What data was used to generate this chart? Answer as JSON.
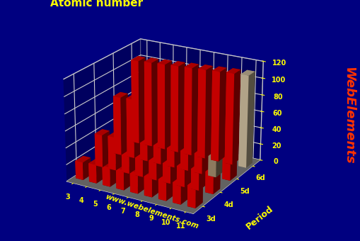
{
  "title": "Atomic number",
  "ylabel": "Period",
  "background_color": "#000080",
  "title_color": "#ffff00",
  "label_color": "#ffff00",
  "tick_color": "#ffff00",
  "watermark": "www.webelements.com",
  "watermark_color": "#ffff00",
  "webelements_text": "WebElements",
  "webelements_color": "#ff3300",
  "groups": [
    3,
    4,
    5,
    6,
    7,
    8,
    9,
    10,
    11
  ],
  "periods": [
    "3d",
    "4d",
    "5d",
    "6d"
  ],
  "atomic_numbers": [
    [
      21,
      22,
      23,
      24,
      25,
      26,
      27,
      28,
      29
    ],
    [
      39,
      40,
      41,
      42,
      43,
      44,
      45,
      46,
      47
    ],
    [
      71,
      72,
      73,
      74,
      75,
      76,
      77,
      78,
      79
    ],
    [
      103,
      104,
      105,
      106,
      107,
      108,
      109,
      110,
      111
    ]
  ],
  "bar_colors": [
    [
      "#dd0000",
      "#dd0000",
      "#dd0000",
      "#dd0000",
      "#dd0000",
      "#dd0000",
      "#dd0000",
      "#dd0000",
      "#dd0000"
    ],
    [
      "#dd0000",
      "#dd0000",
      "#dd0000",
      "#dd0000",
      "#dd0000",
      "#dd0000",
      "#dd0000",
      "#dd0000",
      "#dd0000"
    ],
    [
      "#dd0000",
      "#dd0000",
      "#dd0000",
      "#dd0000",
      "#dd0000",
      "#dd0000",
      "#dd0000",
      "#A0896A",
      "#dd0000"
    ],
    [
      "#dd0000",
      "#dd0000",
      "#dd0000",
      "#dd0000",
      "#dd0000",
      "#dd0000",
      "#dd0000",
      "#dd0000",
      "#C8B89A"
    ]
  ],
  "yticks": [
    0,
    20,
    40,
    60,
    80,
    100,
    120
  ],
  "grid_color": "#cccccc",
  "elev": 22,
  "azim": -60,
  "bar_width": 0.55,
  "bar_depth": 0.4
}
